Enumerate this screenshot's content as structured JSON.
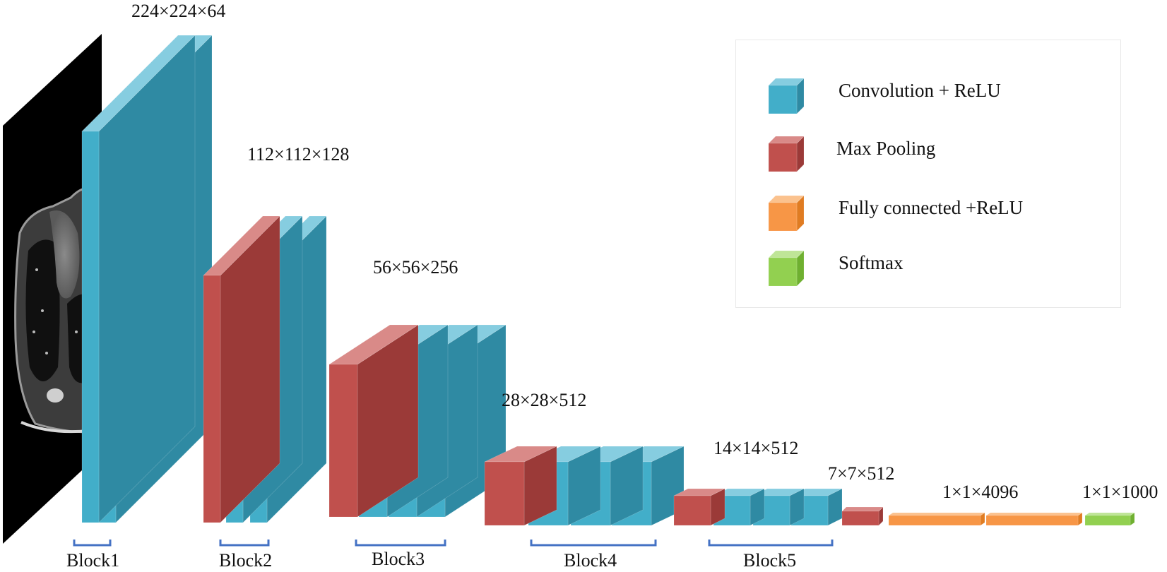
{
  "colors": {
    "conv": {
      "front": "#42aec9",
      "top": "#86cde0",
      "side": "#2f8aa3"
    },
    "pool": {
      "front": "#c0504d",
      "top": "#d98a88",
      "side": "#9b3a38"
    },
    "fc": {
      "front": "#f79646",
      "top": "#fbc28e",
      "side": "#e07c22"
    },
    "softmax": {
      "front": "#92d050",
      "top": "#bfe597",
      "side": "#6fb030"
    },
    "bracket": "#4472c4"
  },
  "dimensions": [
    "224×224×64",
    "112×112×128",
    "56×56×256",
    "28×28×512",
    "14×14×512",
    "7×7×512",
    "1×1×4096",
    "1×1×1000"
  ],
  "blocks": [
    "Block1",
    "Block2",
    "Block3",
    "Block4",
    "Block5"
  ],
  "legend": [
    {
      "kind": "conv",
      "label": "Convolution + ReLU"
    },
    {
      "kind": "pool",
      "label": "Max Pooling"
    },
    {
      "kind": "fc",
      "label": "Fully connected +ReLU"
    },
    {
      "kind": "softmax",
      "label": "Softmax"
    }
  ],
  "input_image": "chest-ct-scan-slice"
}
